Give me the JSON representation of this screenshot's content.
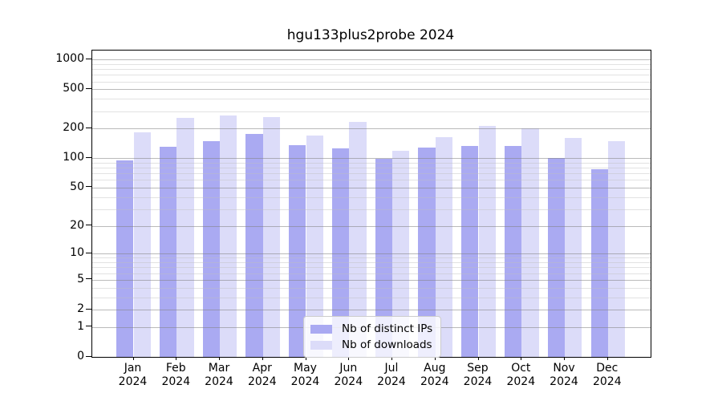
{
  "title": "hgu133plus2probe 2024",
  "colors": {
    "bar_distinct_ips": "#aaaaf2",
    "bar_downloads": "#dcdcf9",
    "axis": "#000000",
    "grid_major": "#828282",
    "grid_minor": "#bebebe",
    "legend_border": "#cccccc"
  },
  "legend": {
    "items": [
      {
        "label": "Nb of distinct IPs"
      },
      {
        "label": "Nb of downloads"
      }
    ]
  },
  "chart_data": {
    "type": "bar",
    "title": "hgu133plus2probe 2024",
    "categories": [
      "Jan 2024",
      "Feb 2024",
      "Mar 2024",
      "Apr 2024",
      "May 2024",
      "Jun 2024",
      "Jul 2024",
      "Aug 2024",
      "Sep 2024",
      "Oct 2024",
      "Nov 2024",
      "Dec 2024"
    ],
    "x_tick_labels": [
      [
        "Jan",
        "2024"
      ],
      [
        "Feb",
        "2024"
      ],
      [
        "Mar",
        "2024"
      ],
      [
        "Apr",
        "2024"
      ],
      [
        "May",
        "2024"
      ],
      [
        "Jun",
        "2024"
      ],
      [
        "Jul",
        "2024"
      ],
      [
        "Aug",
        "2024"
      ],
      [
        "Sep",
        "2024"
      ],
      [
        "Oct",
        "2024"
      ],
      [
        "Nov",
        "2024"
      ],
      [
        "Dec",
        "2024"
      ]
    ],
    "series": [
      {
        "name": "Nb of distinct IPs",
        "color": "#aaaaf2",
        "values": [
          95,
          130,
          148,
          178,
          137,
          125,
          98,
          128,
          134,
          133,
          100,
          77
        ]
      },
      {
        "name": "Nb of downloads",
        "color": "#dcdcf9",
        "values": [
          183,
          255,
          272,
          260,
          170,
          235,
          120,
          164,
          212,
          200,
          160,
          148
        ]
      }
    ],
    "xlabel": "",
    "ylabel": "",
    "yscale": "log1p",
    "ylim": [
      0,
      1230
    ],
    "yticks": [
      0,
      1,
      2,
      5,
      10,
      20,
      50,
      100,
      200,
      500,
      1000
    ],
    "yminorticks": [
      3,
      4,
      6,
      7,
      8,
      9,
      30,
      40,
      60,
      70,
      80,
      90,
      300,
      400,
      600,
      700,
      800,
      900
    ],
    "grid": true,
    "legend_position": "lower center"
  }
}
